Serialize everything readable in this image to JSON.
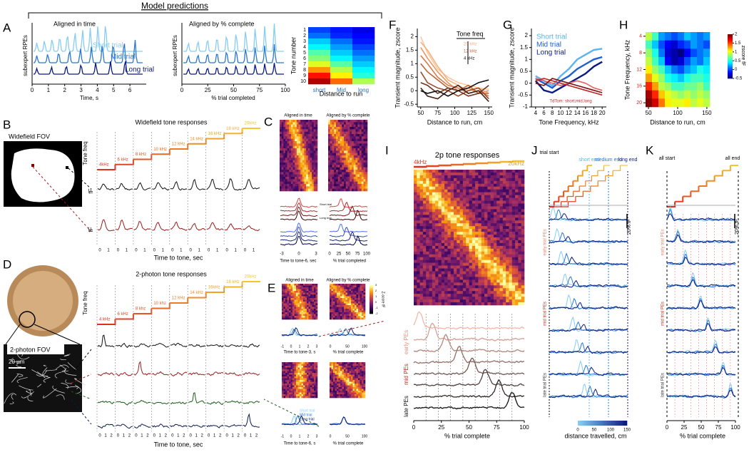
{
  "header": {
    "title": "Model predictions"
  },
  "panels": {
    "A": {
      "letter": "A",
      "time": {
        "title": "Aligned in time",
        "ylabel": "subexpert RPEs",
        "xlabel": "Time, s",
        "xticks": [
          0,
          1,
          2,
          3,
          4,
          5,
          6
        ],
        "xlim": [
          0,
          7
        ],
        "traces": [
          "Short trial",
          "Mid trial",
          "Long trial"
        ]
      },
      "pct": {
        "title": "Aligned by % complete",
        "ylabel": "subexpert RPEs",
        "xlabel": "% trial completed",
        "xticks": [
          0,
          25,
          50,
          75,
          100
        ],
        "xlim": [
          0,
          100
        ]
      },
      "heat": {
        "ylabel": "Tone number",
        "xlabel": "Distance to run",
        "yticks": [
          1,
          2,
          3,
          4,
          5,
          6,
          7,
          8,
          9,
          10
        ],
        "categories": [
          "short",
          "Mid",
          "long"
        ],
        "values": [
          [
            0.15,
            0.1,
            0.05
          ],
          [
            0.2,
            0.12,
            0.08
          ],
          [
            0.3,
            0.2,
            0.1
          ],
          [
            0.35,
            0.25,
            0.15
          ],
          [
            0.45,
            0.3,
            0.2
          ],
          [
            0.5,
            0.35,
            0.25
          ],
          [
            0.6,
            0.45,
            0.3
          ],
          [
            0.75,
            0.55,
            0.35
          ],
          [
            0.9,
            0.65,
            0.4
          ],
          [
            1.0,
            0.8,
            0.55
          ]
        ]
      }
    },
    "B": {
      "letter": "B",
      "fov": "Widefield FOV",
      "title": "Widefield tone responses",
      "tone_axis": "Tone freq",
      "tones": [
        "4kHz",
        "6 kHz",
        "8 kHz",
        "10 kHz",
        "12 kHz",
        "14 kHz",
        "16 kHz",
        "18 kHz",
        "20kHz"
      ],
      "trace_axis": "fF",
      "xlabel": "Time to tone, sec",
      "xticks": [
        0,
        1
      ]
    },
    "C": {
      "letter": "C",
      "left_title": "Aligned in time",
      "right_title": "Aligned by % complete",
      "xlabel_left": "Time to tone-6, sec",
      "xlabel_right": "% trial completed",
      "xticks_left": [
        -3,
        0,
        3
      ],
      "xticks_right": [
        0,
        25,
        50,
        75,
        100
      ],
      "labels": [
        "Short trial",
        "Long trial"
      ]
    },
    "D": {
      "letter": "D",
      "fov": "2-photon FOV",
      "scale": "20 µm",
      "title": "2-photon tone responses",
      "tone_axis": "Tone freq",
      "tones": [
        "4 kHz",
        "6 kHz",
        "8 khz",
        "10 khz",
        "12 kHz",
        "14 kHz",
        "16kHz",
        "18 kHz",
        "20kHz"
      ],
      "trace_axis": "fF",
      "xlabel": "Time to tone, sec",
      "xticks": [
        0,
        1,
        2
      ]
    },
    "E": {
      "letter": "E",
      "left_title": "Aligned in time",
      "right_title": "Aligned by % complete",
      "colorbar_label": "Z-score fF",
      "colorbar_ticks": [
        -2,
        -1,
        0,
        1,
        2,
        3
      ],
      "xlabel_top": "Time to tone-3, s",
      "xlabel_right": "% trial complete",
      "xlabel_bottom": "Time to tone-6, s",
      "xticks_left": [
        -1,
        0,
        1,
        2,
        3
      ],
      "xticks_right": [
        0,
        50,
        100
      ],
      "legend": [
        "Short trial",
        "Mid trial",
        "Long trial"
      ]
    },
    "I": {
      "letter": "I",
      "title": "2p tone responses",
      "start": "4kHz",
      "end": "20kHz",
      "groups": [
        "early PEs",
        "mid PEs",
        "late PEs"
      ],
      "xlabel": "% trial complete",
      "xticks": [
        0,
        25,
        50,
        75,
        100
      ]
    },
    "J": {
      "letter": "J",
      "markers": [
        "trial start",
        "short end",
        "medium end",
        "long end"
      ],
      "scale": "20% fF",
      "groups": [
        "early trial PEs",
        "mid trial PEs",
        "late trial PEs"
      ],
      "xlabel": "distance travelled, cm",
      "colorbar_ticks": [
        0,
        50,
        100,
        150
      ]
    },
    "K": {
      "letter": "K",
      "markers": [
        "all start",
        "all end"
      ],
      "scale": "20% fF",
      "groups": [
        "early trial PEs",
        "mid trial PEs",
        "late trial PEs"
      ],
      "xlabel": "% trial complete",
      "xticks": [
        0,
        25,
        50,
        75,
        100
      ]
    }
  },
  "chart_data": [
    {
      "letter": "F",
      "type": "line",
      "ylabel": "Transient magnitude, zscore",
      "xlabel": "Distance to run, cm",
      "x": [
        50,
        60,
        75,
        90,
        105,
        120,
        135,
        150
      ],
      "xlim": [
        45,
        155
      ],
      "xticks": [
        50,
        75,
        100,
        125,
        150
      ],
      "ylim": [
        -0.6,
        2.3
      ],
      "yticks": [
        -0.5,
        0,
        0.5,
        1,
        1.5,
        2
      ],
      "legend_title": "Tone freq",
      "legend_labels": [
        "20 kHz",
        "12 kHz",
        "4 kHz"
      ],
      "series": [
        {
          "color": "#f9c9a0",
          "values": [
            2.0,
            1.4,
            0.8,
            0.5,
            0.3,
            0.2,
            0.1,
            0.05
          ]
        },
        {
          "color": "#f4b07e",
          "values": [
            1.8,
            1.5,
            0.9,
            0.4,
            0.2,
            0.0,
            0.1,
            -0.1
          ]
        },
        {
          "color": "#ec9660",
          "values": [
            1.6,
            1.2,
            0.7,
            0.3,
            0.0,
            0.1,
            -0.1,
            0.0
          ]
        },
        {
          "color": "#d97b48",
          "values": [
            1.3,
            1.0,
            0.5,
            0.2,
            0.1,
            -0.1,
            0.0,
            -0.2
          ]
        },
        {
          "color": "#bd6338",
          "values": [
            1.0,
            0.7,
            0.4,
            0.1,
            0.0,
            0.2,
            -0.1,
            -0.1
          ]
        },
        {
          "color": "#974c2c",
          "values": [
            0.7,
            0.3,
            0.1,
            0.0,
            -0.2,
            0.0,
            0.1,
            -0.3
          ]
        },
        {
          "color": "#6e3620",
          "values": [
            0.3,
            0.2,
            -0.1,
            0.1,
            0.0,
            -0.2,
            -0.1,
            0.2
          ]
        },
        {
          "color": "#442214",
          "values": [
            0.1,
            -0.2,
            -0.3,
            0.0,
            0.2,
            -0.1,
            0.0,
            -0.4
          ]
        },
        {
          "color": "#111111",
          "values": [
            0.0,
            -0.1,
            0.0,
            -0.2,
            0.0,
            0.1,
            0.3,
            0.4
          ]
        }
      ]
    },
    {
      "letter": "G",
      "type": "line",
      "ylabel": "Transient magnitude, zscore",
      "xlabel": "Tone Frequency, kHz",
      "x": [
        4,
        6,
        8,
        10,
        12,
        14,
        16,
        18,
        20
      ],
      "xlim": [
        3,
        21
      ],
      "xticks": [
        4,
        6,
        8,
        10,
        12,
        14,
        16,
        18,
        20
      ],
      "ylim": [
        -1,
        2.3
      ],
      "yticks": [
        -1,
        -0.5,
        0,
        0.5,
        1,
        1.5,
        2
      ],
      "note": "TdTom: short,mid,long",
      "series": [
        {
          "name": "Short trial",
          "color": "#5ab4f0",
          "values": [
            0.3,
            0.1,
            -0.1,
            0.3,
            0.6,
            1.0,
            1.2,
            1.4,
            1.45
          ]
        },
        {
          "name": "Mid trial",
          "color": "#1f5fd0",
          "values": [
            0.2,
            0.0,
            -0.2,
            0.1,
            0.3,
            0.6,
            0.8,
            1.0,
            1.1
          ]
        },
        {
          "name": "Long trial",
          "color": "#0b1a80",
          "values": [
            0.1,
            -0.3,
            -0.4,
            -0.2,
            0.0,
            0.2,
            0.4,
            0.7,
            0.9
          ]
        },
        {
          "color": "#e86060",
          "values": [
            0.2,
            0.1,
            0.0,
            -0.1,
            0.0,
            0.1,
            0.0,
            -0.2,
            -0.3
          ]
        },
        {
          "color": "#c02828",
          "values": [
            0.1,
            0.2,
            0.1,
            0.0,
            -0.1,
            -0.2,
            -0.3,
            -0.4,
            -0.5
          ]
        },
        {
          "color": "#801010",
          "values": [
            0.0,
            -0.1,
            0.2,
            0.1,
            0.0,
            -0.1,
            -0.2,
            -0.3,
            -0.4
          ]
        }
      ]
    },
    {
      "letter": "H",
      "type": "heatmap",
      "ylabel": "Tone Frequency, kHz",
      "xlabel": "Distance to run, cm",
      "y": [
        4,
        6,
        8,
        10,
        12,
        14,
        16,
        18,
        20
      ],
      "x": [
        50,
        61,
        72,
        83,
        94,
        106,
        117,
        128,
        139,
        150
      ],
      "xlim": [
        45,
        155
      ],
      "yticks": [
        4,
        8,
        12,
        16,
        20
      ],
      "xticks": [
        50,
        100,
        150
      ],
      "colorbar_label": "zscore fF",
      "zlim": [
        -0.5,
        2
      ],
      "zticks": [
        -0.5,
        0,
        0.5,
        1,
        1.5,
        2
      ],
      "values": [
        [
          0.9,
          0.6,
          0.2,
          0.1,
          0.0,
          0.1,
          0.3,
          0.2,
          0.1,
          0.2
        ],
        [
          0.6,
          0.3,
          0.0,
          -0.2,
          -0.3,
          -0.1,
          0.0,
          0.2,
          0.1,
          0.0
        ],
        [
          0.8,
          0.5,
          0.1,
          -0.3,
          -0.4,
          -0.5,
          -0.2,
          0.0,
          0.1,
          0.2
        ],
        [
          0.9,
          0.6,
          0.3,
          -0.2,
          -0.4,
          -0.3,
          0.0,
          0.2,
          0.1,
          0.3
        ],
        [
          1.1,
          0.8,
          0.6,
          0.3,
          0.1,
          0.0,
          0.2,
          0.3,
          0.5,
          0.4
        ],
        [
          1.3,
          1.0,
          0.8,
          0.5,
          0.4,
          0.3,
          0.5,
          0.6,
          0.6,
          0.5
        ],
        [
          1.6,
          1.3,
          0.9,
          0.8,
          0.6,
          0.6,
          0.7,
          0.7,
          0.8,
          0.6
        ],
        [
          1.9,
          1.6,
          1.2,
          1.0,
          0.9,
          0.8,
          0.9,
          0.8,
          0.9,
          0.8
        ],
        [
          2.0,
          1.8,
          1.4,
          1.1,
          1.0,
          1.0,
          1.1,
          0.9,
          1.0,
          0.9
        ]
      ]
    }
  ]
}
